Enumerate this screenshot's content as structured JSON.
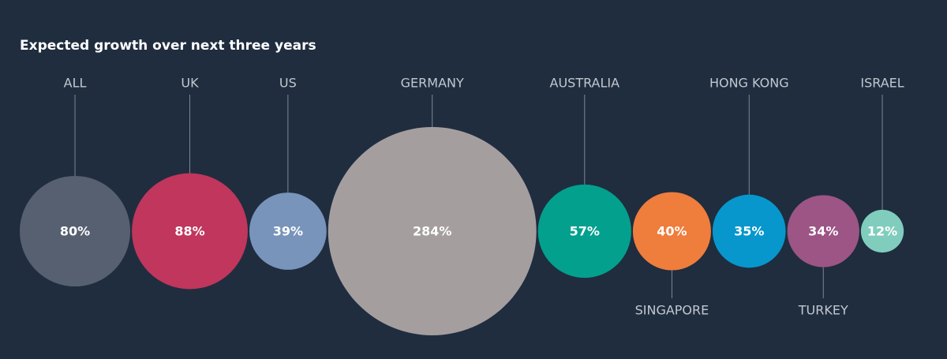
{
  "chart_data": {
    "type": "bubble",
    "title": "Expected growth over next three years",
    "categories": [
      "ALL",
      "UK",
      "US",
      "GERMANY",
      "AUSTRALIA",
      "SINGAPORE",
      "HONG KONG",
      "TURKEY",
      "ISRAEL"
    ],
    "values": [
      80,
      88,
      39,
      284,
      57,
      40,
      35,
      34,
      12
    ],
    "value_labels": [
      "80%",
      "88%",
      "39%",
      "284%",
      "57%",
      "40%",
      "35%",
      "34%",
      "12%"
    ],
    "colors": [
      "#566070",
      "#c0365c",
      "#7894bb",
      "#a59e9f",
      "#03a08e",
      "#ef7d3c",
      "#0797cc",
      "#9c5585",
      "#80cdbd"
    ]
  }
}
